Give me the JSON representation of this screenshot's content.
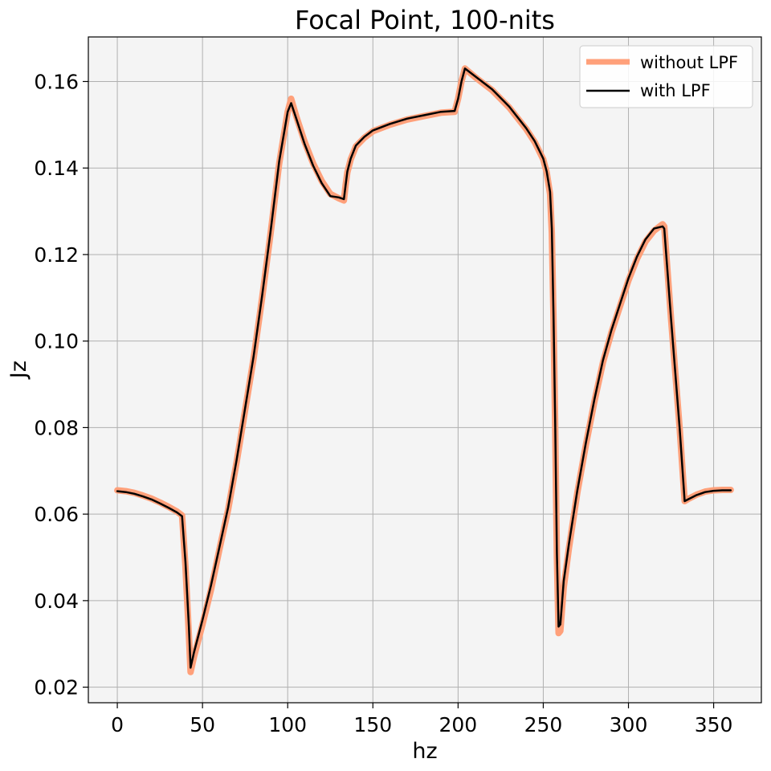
{
  "chart_data": {
    "type": "line",
    "title": "Focal Point,  100-nits",
    "xlabel": "hz",
    "ylabel": "Jz",
    "xlim": [
      -17,
      378
    ],
    "ylim": [
      0.0164,
      0.1703
    ],
    "x_ticks": [
      0,
      50,
      100,
      150,
      200,
      250,
      300,
      350
    ],
    "y_ticks": [
      0.02,
      0.04,
      0.06,
      0.08,
      0.1,
      0.12,
      0.14,
      0.16
    ],
    "x_tick_labels": [
      "0",
      "50",
      "100",
      "150",
      "200",
      "250",
      "300",
      "350"
    ],
    "y_tick_labels": [
      "0.02",
      "0.04",
      "0.06",
      "0.08",
      "0.10",
      "0.12",
      "0.14",
      "0.16"
    ],
    "grid": true,
    "legend_position": "top-right",
    "plot_background": "#f4f4f4",
    "series": [
      {
        "name": "without LPF",
        "color": "#ffa07a",
        "x": [
          0,
          5,
          10,
          15,
          20,
          25,
          30,
          35,
          38,
          40,
          42,
          43,
          45,
          50,
          55,
          60,
          65,
          70,
          75,
          80,
          85,
          90,
          95,
          100,
          102,
          105,
          110,
          115,
          120,
          125,
          130,
          133,
          134,
          135,
          137,
          140,
          145,
          150,
          160,
          170,
          180,
          190,
          198,
          200,
          202,
          204,
          210,
          220,
          230,
          240,
          245,
          250,
          252,
          254,
          255,
          256,
          257,
          258,
          259,
          260,
          261,
          262,
          265,
          270,
          275,
          280,
          285,
          290,
          295,
          300,
          305,
          310,
          315,
          320,
          321,
          325,
          330,
          333,
          335,
          340,
          345,
          350,
          355,
          360
        ],
        "y": [
          0.0655,
          0.0653,
          0.0649,
          0.0643,
          0.0636,
          0.0627,
          0.0617,
          0.0606,
          0.0597,
          0.048,
          0.032,
          0.0235,
          0.027,
          0.0345,
          0.0425,
          0.052,
          0.061,
          0.072,
          0.084,
          0.096,
          0.11,
          0.125,
          0.141,
          0.153,
          0.156,
          0.152,
          0.146,
          0.141,
          0.137,
          0.134,
          0.133,
          0.1325,
          0.136,
          0.139,
          0.142,
          0.145,
          0.147,
          0.1485,
          0.15,
          0.1512,
          0.152,
          0.1528,
          0.153,
          0.156,
          0.16,
          0.163,
          0.161,
          0.158,
          0.154,
          0.149,
          0.146,
          0.142,
          0.139,
          0.134,
          0.125,
          0.105,
          0.08,
          0.05,
          0.0325,
          0.033,
          0.038,
          0.043,
          0.052,
          0.065,
          0.076,
          0.086,
          0.095,
          0.102,
          0.108,
          0.114,
          0.119,
          0.123,
          0.1255,
          0.127,
          0.1265,
          0.105,
          0.08,
          0.063,
          0.0635,
          0.0645,
          0.0652,
          0.0655,
          0.0656,
          0.0656
        ]
      },
      {
        "name": "with LPF",
        "color": "#000000",
        "x": [
          0,
          5,
          10,
          15,
          20,
          25,
          30,
          35,
          38,
          40,
          42,
          43,
          45,
          50,
          55,
          60,
          65,
          70,
          75,
          80,
          85,
          90,
          95,
          100,
          102,
          105,
          110,
          115,
          120,
          125,
          130,
          133,
          134,
          135,
          137,
          140,
          145,
          150,
          160,
          170,
          180,
          190,
          198,
          200,
          202,
          204,
          210,
          220,
          230,
          240,
          245,
          250,
          252,
          254,
          255,
          256,
          257,
          258,
          259,
          260,
          261,
          262,
          265,
          270,
          275,
          280,
          285,
          290,
          295,
          300,
          305,
          310,
          315,
          320,
          321,
          325,
          330,
          333,
          335,
          340,
          345,
          350,
          355,
          360
        ],
        "y": [
          0.0653,
          0.0651,
          0.0647,
          0.0641,
          0.0634,
          0.0625,
          0.0615,
          0.0604,
          0.0595,
          0.049,
          0.034,
          0.0245,
          0.028,
          0.0355,
          0.0435,
          0.0525,
          0.0615,
          0.0725,
          0.0845,
          0.0965,
          0.1105,
          0.1255,
          0.1415,
          0.153,
          0.155,
          0.1515,
          0.1455,
          0.1405,
          0.1365,
          0.1335,
          0.1332,
          0.1328,
          0.136,
          0.1392,
          0.1422,
          0.1452,
          0.1472,
          0.1487,
          0.1502,
          0.1514,
          0.1522,
          0.153,
          0.1532,
          0.156,
          0.16,
          0.163,
          0.1612,
          0.1582,
          0.1542,
          0.1492,
          0.1462,
          0.1422,
          0.1392,
          0.1345,
          0.126,
          0.106,
          0.081,
          0.051,
          0.034,
          0.0345,
          0.0395,
          0.0445,
          0.053,
          0.0655,
          0.0765,
          0.0865,
          0.0955,
          0.1025,
          0.1085,
          0.1145,
          0.1195,
          0.1235,
          0.126,
          0.1265,
          0.126,
          0.105,
          0.08,
          0.063,
          0.0634,
          0.0644,
          0.0651,
          0.0654,
          0.0655,
          0.0655
        ]
      }
    ]
  }
}
